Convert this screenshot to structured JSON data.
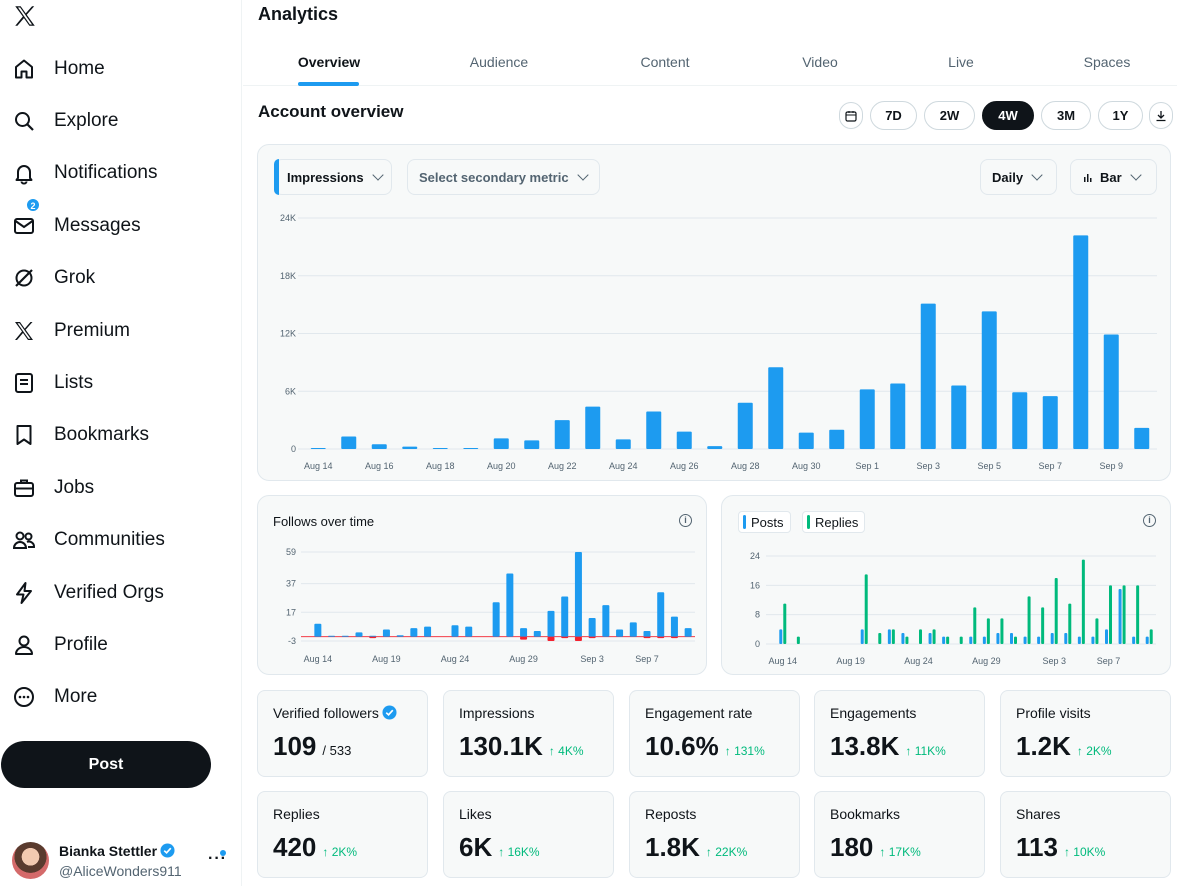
{
  "sidebar": {
    "logo": "x-logo-icon",
    "items": [
      {
        "label": "Home",
        "icon": "home-icon"
      },
      {
        "label": "Explore",
        "icon": "search-icon"
      },
      {
        "label": "Notifications",
        "icon": "bell-icon"
      },
      {
        "label": "Messages",
        "icon": "envelope-icon",
        "badge": "2"
      },
      {
        "label": "Grok",
        "icon": "grok-icon"
      },
      {
        "label": "Premium",
        "icon": "x-logo-icon"
      },
      {
        "label": "Lists",
        "icon": "list-icon"
      },
      {
        "label": "Bookmarks",
        "icon": "bookmark-icon"
      },
      {
        "label": "Jobs",
        "icon": "briefcase-icon"
      },
      {
        "label": "Communities",
        "icon": "people-icon"
      },
      {
        "label": "Verified Orgs",
        "icon": "lightning-icon"
      },
      {
        "label": "Profile",
        "icon": "person-icon"
      },
      {
        "label": "More",
        "icon": "more-circle-icon"
      }
    ],
    "post_label": "Post",
    "account": {
      "name": "Bianka Stettler",
      "handle": "@AliceWonders911"
    }
  },
  "header": {
    "title": "Analytics",
    "tabs": [
      "Overview",
      "Audience",
      "Content",
      "Video",
      "Live",
      "Spaces"
    ],
    "active_tab": "Overview"
  },
  "overview": {
    "title": "Account overview",
    "ranges": [
      "7D",
      "2W",
      "4W",
      "3M",
      "1Y"
    ],
    "active_range": "4W",
    "primary_metric": "Impressions",
    "secondary_metric_placeholder": "Select secondary metric",
    "interval": "Daily",
    "chart_type_label": "Bar"
  },
  "follows_card": {
    "title": "Follows over time"
  },
  "posts_card": {
    "legend": [
      "Posts",
      "Replies"
    ]
  },
  "colors": {
    "blue": "#1d9bf0",
    "green": "#00ba7c",
    "red": "#f4212e"
  },
  "stats": [
    {
      "label": "Verified followers",
      "value": "109",
      "sub": "/ 533",
      "verified": true
    },
    {
      "label": "Impressions",
      "value": "130.1K",
      "delta": "↑ 4K%"
    },
    {
      "label": "Engagement rate",
      "value": "10.6%",
      "delta": "↑ 131%"
    },
    {
      "label": "Engagements",
      "value": "13.8K",
      "delta": "↑ 11K%"
    },
    {
      "label": "Profile visits",
      "value": "1.2K",
      "delta": "↑ 2K%"
    },
    {
      "label": "Replies",
      "value": "420",
      "delta": "↑ 2K%"
    },
    {
      "label": "Likes",
      "value": "6K",
      "delta": "↑ 16K%"
    },
    {
      "label": "Reposts",
      "value": "1.8K",
      "delta": "↑ 22K%"
    },
    {
      "label": "Bookmarks",
      "value": "180",
      "delta": "↑ 17K%"
    },
    {
      "label": "Shares",
      "value": "113",
      "delta": "↑ 10K%"
    }
  ],
  "chart_data": [
    {
      "type": "bar",
      "ylim": [
        0,
        24000
      ],
      "yticks": [
        0,
        6000,
        12000,
        18000,
        24000
      ],
      "ytick_labels": [
        "0",
        "6K",
        "12K",
        "18K",
        "24K"
      ],
      "xtick_labels": [
        "Aug 14",
        "Aug 16",
        "Aug 18",
        "Aug 20",
        "Aug 22",
        "Aug 24",
        "Aug 26",
        "Aug 28",
        "Aug 30",
        "Sep 1",
        "Sep 3",
        "Sep 5",
        "Sep 7",
        "Sep 9"
      ],
      "categories": [
        "Aug 14",
        "Aug 15",
        "Aug 16",
        "Aug 17",
        "Aug 18",
        "Aug 19",
        "Aug 20",
        "Aug 21",
        "Aug 22",
        "Aug 23",
        "Aug 24",
        "Aug 25",
        "Aug 26",
        "Aug 27",
        "Aug 28",
        "Aug 29",
        "Aug 30",
        "Aug 31",
        "Sep 1",
        "Sep 2",
        "Sep 3",
        "Sep 4",
        "Sep 5",
        "Sep 6",
        "Sep 7",
        "Sep 8",
        "Sep 9",
        "Sep 10"
      ],
      "series": [
        {
          "name": "Impressions",
          "values": [
            100,
            1300,
            500,
            250,
            100,
            100,
            1100,
            900,
            3000,
            4400,
            1000,
            3900,
            1800,
            300,
            4800,
            8500,
            1700,
            2000,
            6200,
            6800,
            15100,
            6600,
            14300,
            5900,
            5500,
            22200,
            11900,
            2200
          ]
        }
      ],
      "grid": true
    },
    {
      "type": "bar",
      "title": "Follows over time",
      "ylim": [
        -3,
        59
      ],
      "yticks": [
        -3,
        17,
        37,
        59
      ],
      "ytick_labels": [
        "-3",
        "17",
        "37",
        "59"
      ],
      "xtick_labels": [
        "Aug 14",
        "Aug 19",
        "Aug 24",
        "Aug 29",
        "Sep 3",
        "Sep 7"
      ],
      "categories": [
        "Aug 14",
        "Aug 15",
        "Aug 16",
        "Aug 17",
        "Aug 18",
        "Aug 19",
        "Aug 20",
        "Aug 21",
        "Aug 22",
        "Aug 23",
        "Aug 24",
        "Aug 25",
        "Aug 26",
        "Aug 27",
        "Aug 28",
        "Aug 29",
        "Aug 30",
        "Aug 31",
        "Sep 1",
        "Sep 2",
        "Sep 3",
        "Sep 4",
        "Sep 5",
        "Sep 6",
        "Sep 7",
        "Sep 8",
        "Sep 9",
        "Sep 10"
      ],
      "series": [
        {
          "name": "Follows",
          "values": [
            9,
            0.5,
            0.5,
            3,
            0.5,
            5,
            1,
            6,
            7,
            0,
            8,
            7,
            0,
            24,
            44,
            6,
            4,
            18,
            28,
            59,
            13,
            22,
            5,
            10,
            4,
            31,
            14,
            6
          ]
        },
        {
          "name": "Unfollows",
          "values": [
            0,
            0,
            0,
            0,
            -1,
            0,
            0,
            0,
            0,
            0,
            0,
            0,
            0,
            0,
            0,
            -2,
            0,
            -3,
            -1,
            -3,
            -1,
            0,
            0,
            0,
            -1,
            -1,
            -1,
            0
          ]
        }
      ],
      "grid": true
    },
    {
      "type": "bar",
      "ylim": [
        0,
        24
      ],
      "yticks": [
        0,
        8,
        16,
        24
      ],
      "ytick_labels": [
        "0",
        "8",
        "16",
        "24"
      ],
      "xtick_labels": [
        "Aug 14",
        "Aug 19",
        "Aug 24",
        "Aug 29",
        "Sep 3",
        "Sep 7"
      ],
      "categories": [
        "Aug 14",
        "Aug 15",
        "Aug 16",
        "Aug 17",
        "Aug 18",
        "Aug 19",
        "Aug 20",
        "Aug 21",
        "Aug 22",
        "Aug 23",
        "Aug 24",
        "Aug 25",
        "Aug 26",
        "Aug 27",
        "Aug 28",
        "Aug 29",
        "Aug 30",
        "Aug 31",
        "Sep 1",
        "Sep 2",
        "Sep 3",
        "Sep 4",
        "Sep 5",
        "Sep 6",
        "Sep 7",
        "Sep 8",
        "Sep 9",
        "Sep 10"
      ],
      "series": [
        {
          "name": "Posts",
          "values": [
            4,
            0,
            0,
            0,
            0,
            0,
            4,
            0,
            4,
            3,
            0,
            3,
            2,
            0,
            2,
            2,
            3,
            3,
            2,
            2,
            3,
            3,
            2,
            2,
            4,
            15,
            2,
            2
          ]
        },
        {
          "name": "Replies",
          "values": [
            11,
            2,
            0,
            0,
            0,
            0,
            19,
            3,
            4,
            2,
            4,
            4,
            2,
            2,
            10,
            7,
            7,
            2,
            13,
            10,
            18,
            11,
            23,
            7,
            16,
            16,
            16,
            4
          ]
        }
      ],
      "grid": true
    }
  ]
}
